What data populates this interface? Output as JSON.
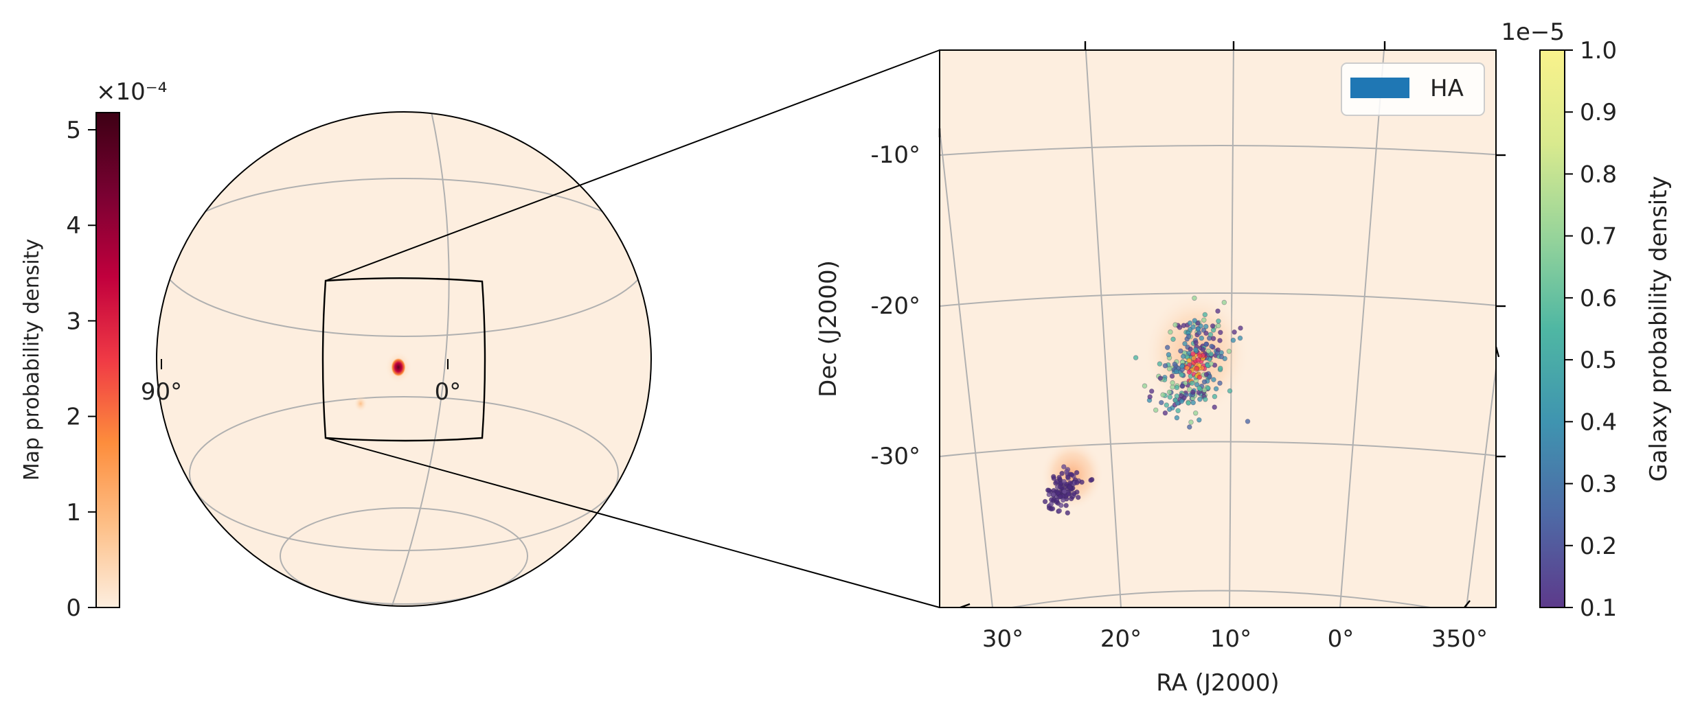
{
  "colors": {
    "background": "#fdeedf",
    "grid": "#b0b0b0",
    "frame": "#000000",
    "legend_patch": "#1f77b4",
    "map_cmap": [
      "#fdeedf",
      "#fdbf87",
      "#fd8d3c",
      "#f03a45",
      "#c1003d",
      "#7a0132",
      "#3d0014"
    ],
    "galaxy_cmap": [
      "#5d3a8b",
      "#4e6aa6",
      "#3f94b0",
      "#4fb7a3",
      "#97d49a",
      "#d9ea8e",
      "#f9f28c"
    ]
  },
  "left_colorbar": {
    "label": "Map probability density",
    "scale_label": "×10⁻⁴",
    "ticks": [
      {
        "value": 0,
        "label": "0"
      },
      {
        "value": 1,
        "label": "1"
      },
      {
        "value": 2,
        "label": "2"
      },
      {
        "value": 3,
        "label": "3"
      },
      {
        "value": 4,
        "label": "4"
      },
      {
        "value": 5,
        "label": "5"
      }
    ],
    "range": [
      0,
      5.18
    ]
  },
  "globe": {
    "labels": {
      "lon_90": "90°",
      "lon_0": "0°"
    }
  },
  "right_colorbar": {
    "label": "Galaxy probability density",
    "offset_label": "1e−5",
    "ticks": [
      "0.1",
      "0.2",
      "0.3",
      "0.4",
      "0.5",
      "0.6",
      "0.7",
      "0.8",
      "0.9",
      "1.0"
    ],
    "range": [
      0.1,
      1.0
    ]
  },
  "chart_data": {
    "type": "scatter",
    "xlabel": "RA (J2000)",
    "ylabel": "Dec (J2000)",
    "xticks": [
      "30°",
      "20°",
      "10°",
      "0°",
      "350°"
    ],
    "yticks": [
      "-10°",
      "-20°",
      "-30°"
    ],
    "xlim_deg": [
      35.5,
      346
    ],
    "ylim_deg": [
      -39,
      -2
    ],
    "grid": true,
    "legend": {
      "position": "top-right",
      "entries": [
        "HA"
      ]
    },
    "clusters": [
      {
        "ra_center": 12.8,
        "dec_center": -23.0,
        "ra_spread": 2.8,
        "dec_spread": 3.0,
        "count": 280
      },
      {
        "ra_center": 24.5,
        "dec_center": -31.2,
        "ra_spread": 1.4,
        "dec_spread": 1.5,
        "count": 110
      }
    ]
  }
}
